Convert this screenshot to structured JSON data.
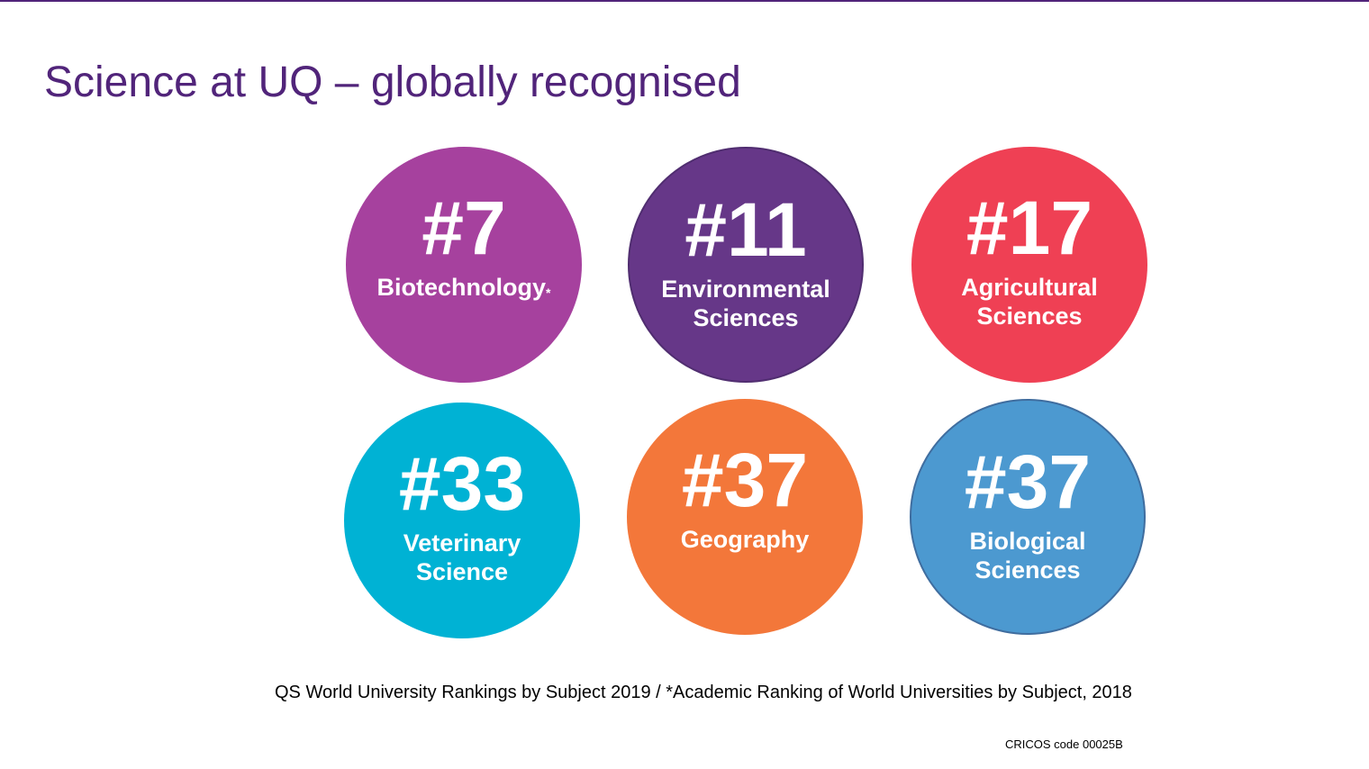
{
  "slide": {
    "title": "Science at UQ – globally recognised",
    "rankings": [
      {
        "rank": "#7",
        "subject_lines": [
          "Biotechnology"
        ],
        "marker": "*",
        "color": "#a6419e"
      },
      {
        "rank": "#11",
        "subject_lines": [
          "Environmental",
          "Sciences"
        ],
        "marker": "",
        "color": "#663788"
      },
      {
        "rank": "#17",
        "subject_lines": [
          "Agricultural",
          "Sciences"
        ],
        "marker": "",
        "color": "#ef4054"
      },
      {
        "rank": "#33",
        "subject_lines": [
          "Veterinary",
          "Science"
        ],
        "marker": "",
        "color": "#00b2d4"
      },
      {
        "rank": "#37",
        "subject_lines": [
          "Geography"
        ],
        "marker": "",
        "color": "#f3773a"
      },
      {
        "rank": "#37",
        "subject_lines": [
          "Biological",
          "Sciences"
        ],
        "marker": "",
        "color": "#4c99d0"
      }
    ],
    "source_note": "QS World University Rankings by Subject 2019 / *Academic Ranking of World Universities by Subject, 2018",
    "cricos": "CRICOS code 00025B"
  }
}
